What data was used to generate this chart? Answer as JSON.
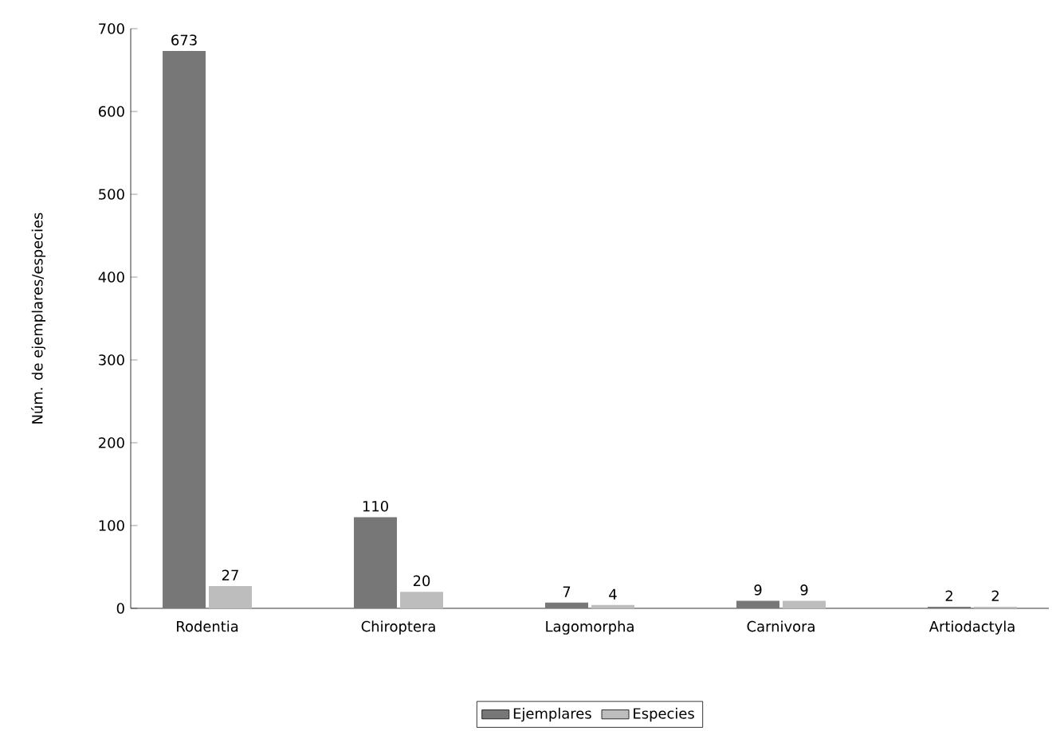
{
  "chart_data": {
    "type": "bar",
    "ylabel": "Núm. de ejemplares/especies",
    "categories": [
      "Rodentia",
      "Chiroptera",
      "Lagomorpha",
      "Carnivora",
      "Artiodactyla"
    ],
    "series": [
      {
        "name": "Ejemplares",
        "color": "#777777",
        "values": [
          673,
          110,
          7,
          9,
          2
        ]
      },
      {
        "name": "Especies",
        "color": "#bdbdbd",
        "values": [
          27,
          20,
          4,
          9,
          2
        ]
      }
    ],
    "ylim": [
      0,
      700
    ],
    "yticks": [
      0,
      100,
      200,
      300,
      400,
      500,
      600,
      700
    ],
    "data_labels": true,
    "legend": "bottom",
    "grid": false
  }
}
